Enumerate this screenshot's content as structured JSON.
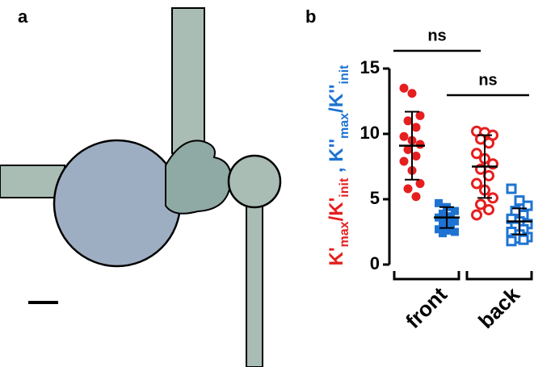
{
  "panel_a": {
    "label": "a"
  },
  "chart_data": {
    "type": "dotplot",
    "label": "b",
    "ylabel": [
      {
        "text": "K'",
        "color": "#e61e1e"
      },
      {
        "text": "max",
        "color": "#e61e1e",
        "sub": true
      },
      {
        "text": "/K'",
        "color": "#e61e1e"
      },
      {
        "text": "init",
        "color": "#e61e1e",
        "sub": true
      },
      {
        "text": " , ",
        "color": "#1e73d2"
      },
      {
        "text": "K''",
        "color": "#1e73d2"
      },
      {
        "text": "max",
        "color": "#1e73d2",
        "sub": true
      },
      {
        "text": "/K''",
        "color": "#1e73d2"
      },
      {
        "text": "init",
        "color": "#1e73d2",
        "sub": true
      }
    ],
    "categories": [
      "front",
      "back"
    ],
    "ylim": [
      0,
      15
    ],
    "yticks": [
      0,
      5,
      10,
      15
    ],
    "series": [
      {
        "color": "#e61e1e",
        "marker": "circle",
        "filled": [
          true,
          false
        ],
        "values": [
          [
            13.5,
            13.1,
            11.4,
            11.0,
            10.5,
            9.8,
            9.5,
            9.2,
            8.8,
            8.3,
            7.9,
            7.2,
            6.2,
            5.8,
            5.2
          ],
          [
            10.2,
            10.1,
            9.9,
            9.6,
            9.3,
            8.5,
            8.1,
            7.7,
            7.3,
            6.8,
            6.2,
            5.7,
            5.1,
            4.6,
            4.2,
            3.8
          ]
        ],
        "mean": [
          9.1,
          7.5
        ],
        "sd": [
          2.6,
          2.4
        ]
      },
      {
        "color": "#1e73d2",
        "marker": "square",
        "filled": [
          true,
          false
        ],
        "values": [
          [
            4.7,
            4.4,
            4.1,
            3.9,
            3.7,
            3.6,
            3.5,
            3.3,
            3.1,
            2.9,
            2.7,
            2.6,
            2.5,
            2.4
          ],
          [
            5.8,
            4.9,
            4.5,
            4.1,
            3.8,
            3.5,
            3.3,
            3.1,
            2.9,
            2.7,
            2.5,
            2.3,
            2.1,
            2.0,
            1.9,
            1.8
          ]
        ],
        "mean": [
          3.6,
          3.3
        ],
        "sd": [
          0.8,
          1.0
        ]
      }
    ],
    "annotations": [
      {
        "text": "ns"
      },
      {
        "text": "ns"
      }
    ]
  }
}
